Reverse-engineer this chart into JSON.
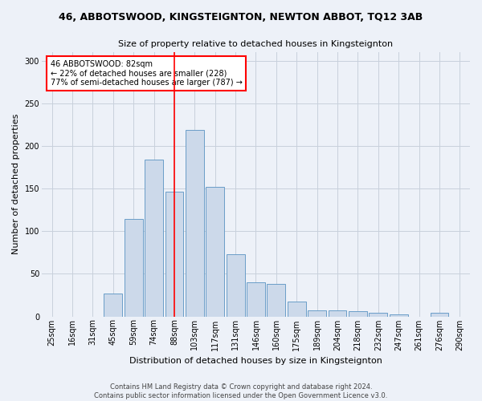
{
  "title": "46, ABBOTSWOOD, KINGSTEIGNTON, NEWTON ABBOT, TQ12 3AB",
  "subtitle": "Size of property relative to detached houses in Kingsteignton",
  "xlabel": "Distribution of detached houses by size in Kingsteignton",
  "ylabel": "Number of detached properties",
  "footer_line1": "Contains HM Land Registry data © Crown copyright and database right 2024.",
  "footer_line2": "Contains public sector information licensed under the Open Government Licence v3.0.",
  "bar_color": "#ccd9ea",
  "bar_edge_color": "#6a9dc8",
  "grid_color": "#c8d0dc",
  "background_color": "#edf1f8",
  "annotation_text": "46 ABBOTSWOOD: 82sqm\n← 22% of detached houses are smaller (228)\n77% of semi-detached houses are larger (787) →",
  "annotation_box_color": "white",
  "annotation_box_edge": "red",
  "vline_color": "red",
  "categories": [
    "25sqm",
    "16sqm",
    "31sqm",
    "45sqm",
    "59sqm",
    "74sqm",
    "88sqm",
    "103sqm",
    "117sqm",
    "131sqm",
    "146sqm",
    "160sqm",
    "175sqm",
    "189sqm",
    "204sqm",
    "218sqm",
    "232sqm",
    "247sqm",
    "261sqm",
    "276sqm",
    "290sqm"
  ],
  "values": [
    0,
    0,
    0,
    27,
    114,
    184,
    146,
    219,
    152,
    73,
    40,
    38,
    17,
    7,
    7,
    6,
    4,
    2,
    0,
    4,
    0
  ],
  "ylim": [
    0,
    310
  ],
  "yticks": [
    0,
    50,
    100,
    150,
    200,
    250,
    300
  ],
  "vline_bar_index": 6,
  "annotation_bar_index": 6,
  "n_bars": 21,
  "title_fontsize": 9,
  "subtitle_fontsize": 8,
  "xlabel_fontsize": 8,
  "ylabel_fontsize": 8,
  "tick_fontsize": 7,
  "footer_fontsize": 6
}
